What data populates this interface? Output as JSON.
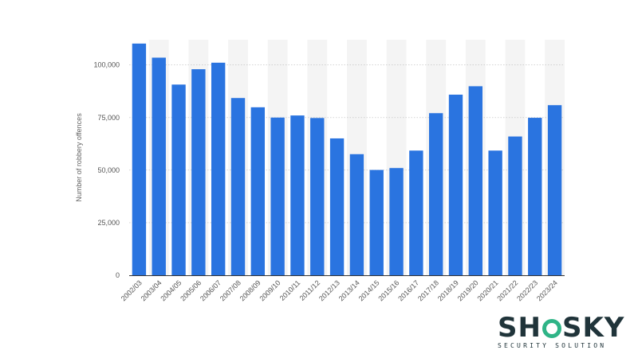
{
  "chart_data": {
    "type": "bar",
    "title": "",
    "xlabel": "",
    "ylabel": "Number of robbery offences",
    "ylim": [
      0,
      112000
    ],
    "yticks": [
      0,
      25000,
      50000,
      75000,
      100000
    ],
    "ytick_labels": [
      "0",
      "25,000",
      "50,000",
      "75,000",
      "100,000"
    ],
    "grid": true,
    "bar_color": "#2a74e0",
    "categories": [
      "2002/03",
      "2003/04",
      "2004/05",
      "2005/06",
      "2006/07",
      "2007/08",
      "2008/09",
      "2009/10",
      "2010/11",
      "2011/12",
      "2012/13",
      "2013/14",
      "2014/15",
      "2015/16",
      "2016/17",
      "2017/18",
      "2018/19",
      "2019/20",
      "2020/21",
      "2021/22",
      "2022/23",
      "2023/24"
    ],
    "values": [
      110200,
      103500,
      90700,
      98000,
      101100,
      84300,
      79900,
      75000,
      76000,
      74800,
      65100,
      57600,
      50100,
      51000,
      59300,
      77100,
      85900,
      89900,
      59300,
      66000,
      74900,
      80900
    ]
  },
  "logo": {
    "word_left": "SH",
    "word_right": "SKY",
    "tagline": "SECURITY SOLUTION",
    "text_color": "#20343a",
    "accent_color": "#2fb487"
  }
}
